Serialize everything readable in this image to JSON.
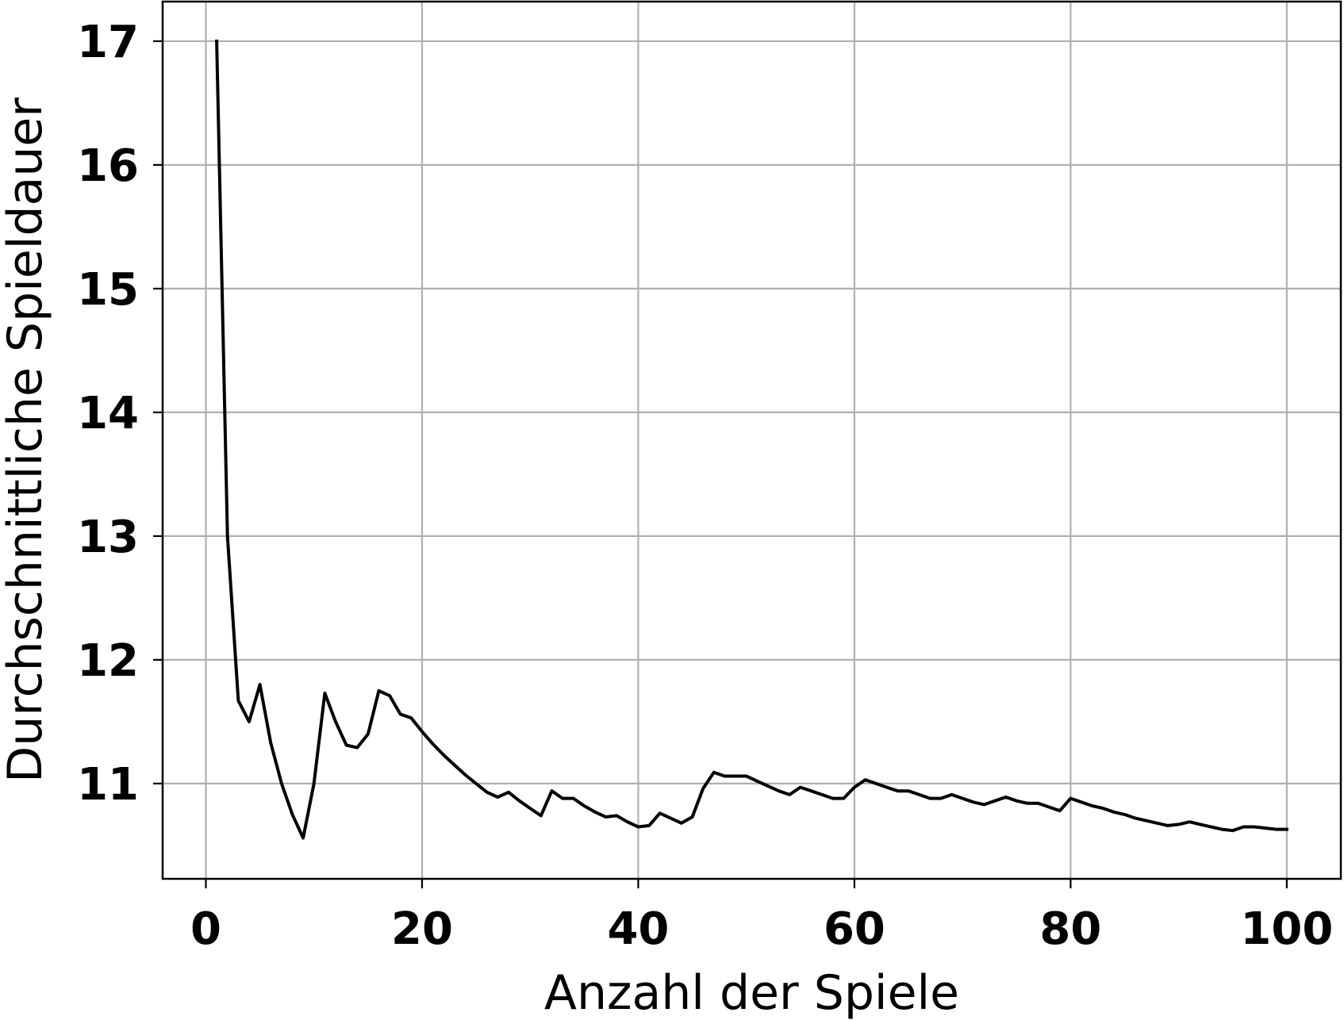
{
  "chart_data": {
    "type": "line",
    "xlabel": "Anzahl der Spiele",
    "ylabel": "Durchschnittliche Spieldauer",
    "xlim": [
      -4,
      105
    ],
    "ylim": [
      10.23,
      17.32
    ],
    "x_ticks": [
      0,
      20,
      40,
      60,
      80,
      100
    ],
    "x_tick_labels": [
      "0",
      "20",
      "40",
      "60",
      "80",
      "100"
    ],
    "y_ticks": [
      11,
      12,
      13,
      14,
      15,
      16,
      17
    ],
    "y_tick_labels": [
      "11",
      "12",
      "13",
      "14",
      "15",
      "16",
      "17"
    ],
    "grid": true,
    "line_color": "#000000",
    "series": [
      {
        "x": [
          1,
          2,
          3,
          4,
          5,
          6,
          7,
          8,
          9,
          10,
          11,
          12,
          13,
          14,
          15,
          16,
          17,
          18,
          19,
          20,
          21,
          22,
          23,
          24,
          25,
          26,
          27,
          28,
          29,
          30,
          31,
          32,
          33,
          34,
          35,
          36,
          37,
          38,
          39,
          40,
          41,
          42,
          43,
          44,
          45,
          46,
          47,
          48,
          49,
          50,
          51,
          52,
          53,
          54,
          55,
          56,
          57,
          58,
          59,
          60,
          61,
          62,
          63,
          64,
          65,
          66,
          67,
          68,
          69,
          70,
          71,
          72,
          73,
          74,
          75,
          76,
          77,
          78,
          79,
          80,
          81,
          82,
          83,
          84,
          85,
          86,
          87,
          88,
          89,
          90,
          91,
          92,
          93,
          94,
          95,
          96,
          97,
          98,
          99,
          100
        ],
        "y": [
          17.0,
          13.0,
          11.67,
          11.5,
          11.8,
          11.33,
          11.0,
          10.75,
          10.56,
          11.0,
          11.73,
          11.5,
          11.31,
          11.29,
          11.4,
          11.75,
          11.71,
          11.56,
          11.53,
          11.42,
          11.32,
          11.23,
          11.15,
          11.07,
          11.0,
          10.93,
          10.89,
          10.93,
          10.86,
          10.8,
          10.74,
          10.94,
          10.88,
          10.88,
          10.82,
          10.77,
          10.73,
          10.74,
          10.69,
          10.65,
          10.66,
          10.76,
          10.72,
          10.68,
          10.73,
          10.96,
          11.09,
          11.06,
          11.06,
          11.06,
          11.02,
          10.98,
          10.94,
          10.91,
          10.97,
          10.94,
          10.91,
          10.88,
          10.88,
          10.97,
          11.03,
          11.0,
          10.97,
          10.94,
          10.94,
          10.91,
          10.88,
          10.88,
          10.91,
          10.88,
          10.85,
          10.83,
          10.86,
          10.89,
          10.86,
          10.84,
          10.84,
          10.81,
          10.78,
          10.88,
          10.85,
          10.82,
          10.8,
          10.77,
          10.75,
          10.72,
          10.7,
          10.68,
          10.66,
          10.67,
          10.69,
          10.67,
          10.65,
          10.63,
          10.62,
          10.65,
          10.65,
          10.64,
          10.63,
          10.63
        ]
      }
    ]
  }
}
